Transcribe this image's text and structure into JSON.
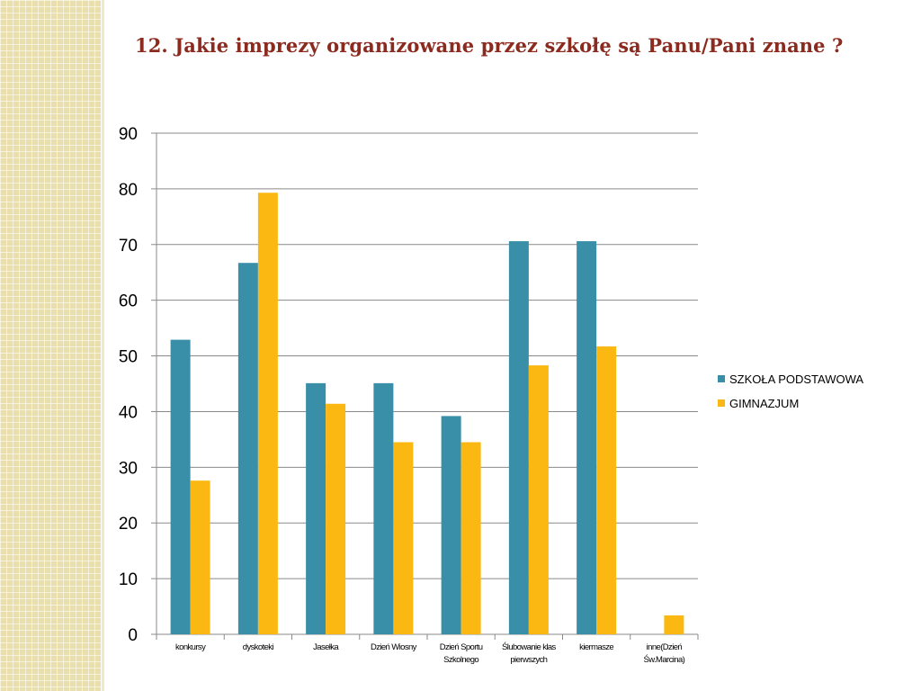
{
  "slide": {
    "title": "12. Jakie imprezy organizowane przez szkołę są Panu/Pani znane ?"
  },
  "colors": {
    "series_1": "#3a8fa8",
    "series_2": "#fbb812",
    "gridline": "#8a8a8a",
    "title": "#8b2a1e"
  },
  "chart_data": {
    "type": "bar",
    "title": "",
    "xlabel": "",
    "ylabel": "",
    "ylim": [
      0,
      90
    ],
    "yticks": [
      0,
      10,
      20,
      30,
      40,
      50,
      60,
      70,
      80,
      90
    ],
    "grid": true,
    "legend_position": "right",
    "categories": [
      [
        "konkursy"
      ],
      [
        "dyskoteki"
      ],
      [
        "Jasełka"
      ],
      [
        "Dzień Wiosny"
      ],
      [
        "Dzień Sportu",
        "Szkolnego"
      ],
      [
        "Ślubowanie klas",
        "pierwszych"
      ],
      [
        "kiermasze"
      ],
      [
        "inne(Dzień",
        "Św.Marcina)"
      ]
    ],
    "series": [
      {
        "name": "SZKOŁA PODSTAWOWA",
        "values": [
          52.9,
          66.7,
          45.1,
          45.1,
          39.2,
          70.6,
          70.6,
          0
        ]
      },
      {
        "name": "GIMNAZJUM",
        "values": [
          27.6,
          79.3,
          41.4,
          34.5,
          34.5,
          48.3,
          51.7,
          3.4
        ]
      }
    ]
  }
}
